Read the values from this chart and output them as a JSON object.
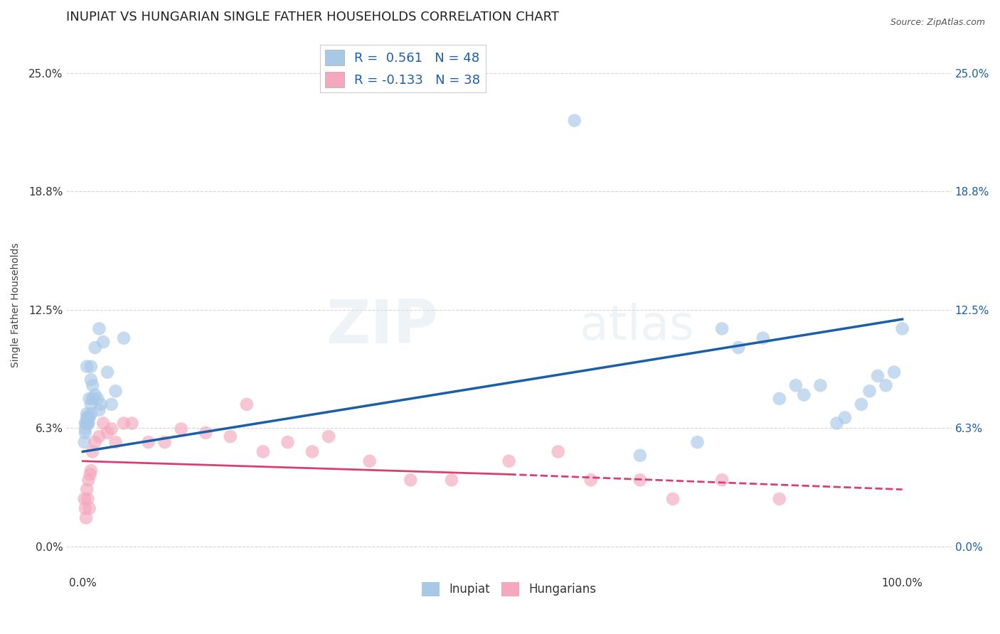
{
  "title": "INUPIAT VS HUNGARIAN SINGLE FATHER HOUSEHOLDS CORRELATION CHART",
  "source": "Source: ZipAtlas.com",
  "ylabel": "Single Father Households",
  "background_color": "#ffffff",
  "watermark_line1": "ZIP",
  "watermark_line2": "atlas",
  "legend_inupiat_R": "R =  0.561",
  "legend_inupiat_N": "N = 48",
  "legend_hungarian_R": "R = -0.133",
  "legend_hungarian_N": "N = 38",
  "inupiat_color": "#a8c8e8",
  "hungarian_color": "#f4a8be",
  "inupiat_line_color": "#1a5fa8",
  "hungarian_line_color": "#d94070",
  "inupiat_x": [
    1.0,
    1.5,
    2.0,
    2.5,
    3.0,
    3.5,
    4.0,
    5.0,
    1.0,
    1.2,
    1.5,
    1.8,
    2.0,
    2.2,
    0.5,
    0.8,
    1.0,
    1.2,
    0.3,
    0.5,
    0.6,
    0.7,
    0.8,
    1.0,
    0.3,
    0.4,
    0.5,
    0.6,
    0.2,
    0.3,
    60.0,
    68.0,
    75.0,
    78.0,
    80.0,
    83.0,
    85.0,
    87.0,
    88.0,
    90.0,
    92.0,
    93.0,
    95.0,
    96.0,
    97.0,
    98.0,
    99.0,
    100.0
  ],
  "inupiat_y": [
    9.5,
    10.5,
    11.5,
    10.8,
    9.2,
    7.5,
    8.2,
    11.0,
    8.8,
    8.5,
    8.0,
    7.8,
    7.2,
    7.5,
    9.5,
    7.8,
    7.5,
    7.8,
    6.5,
    7.0,
    6.8,
    6.5,
    6.8,
    7.0,
    6.2,
    6.5,
    6.8,
    6.5,
    5.5,
    6.0,
    22.5,
    4.8,
    5.5,
    11.5,
    10.5,
    11.0,
    7.8,
    8.5,
    8.0,
    8.5,
    6.5,
    6.8,
    7.5,
    8.2,
    9.0,
    8.5,
    9.2,
    11.5
  ],
  "hungarian_x": [
    0.2,
    0.3,
    0.4,
    0.5,
    0.6,
    0.7,
    0.8,
    0.9,
    1.0,
    1.2,
    1.5,
    2.0,
    2.5,
    3.0,
    3.5,
    4.0,
    5.0,
    6.0,
    8.0,
    10.0,
    12.0,
    15.0,
    18.0,
    20.0,
    22.0,
    25.0,
    28.0,
    30.0,
    35.0,
    40.0,
    45.0,
    52.0,
    58.0,
    62.0,
    68.0,
    72.0,
    78.0,
    85.0
  ],
  "hungarian_y": [
    2.5,
    2.0,
    1.5,
    3.0,
    2.5,
    3.5,
    2.0,
    3.8,
    4.0,
    5.0,
    5.5,
    5.8,
    6.5,
    6.0,
    6.2,
    5.5,
    6.5,
    6.5,
    5.5,
    5.5,
    6.2,
    6.0,
    5.8,
    7.5,
    5.0,
    5.5,
    5.0,
    5.8,
    4.5,
    3.5,
    3.5,
    4.5,
    5.0,
    3.5,
    3.5,
    2.5,
    3.5,
    2.5
  ],
  "ytick_labels": [
    "0.0%",
    "6.3%",
    "12.5%",
    "18.8%",
    "25.0%"
  ],
  "ytick_values": [
    0.0,
    6.25,
    12.5,
    18.75,
    25.0
  ],
  "xtick_labels": [
    "0.0%",
    "100.0%"
  ],
  "xtick_values": [
    0.0,
    100.0
  ],
  "xlim": [
    -2,
    106
  ],
  "ylim": [
    -1.5,
    27
  ],
  "grid_color": "#cccccc",
  "title_fontsize": 13,
  "axis_label_fontsize": 10,
  "tick_fontsize": 11
}
